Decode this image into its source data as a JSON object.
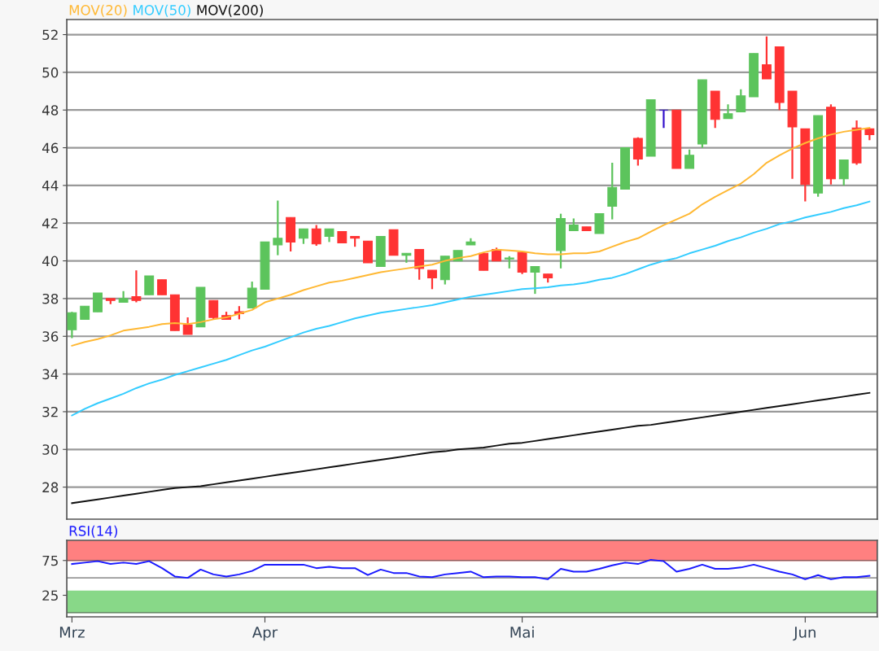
{
  "chart_data": [
    {
      "type": "candlestick",
      "categories": [
        null,
        null,
        null,
        null,
        null,
        null,
        null,
        null,
        null,
        null,
        null,
        null,
        null,
        null,
        null,
        null,
        null,
        null,
        null,
        null,
        null,
        null,
        null,
        null,
        null,
        null,
        null,
        null,
        null,
        null,
        null,
        null,
        null,
        null,
        null,
        null,
        null,
        null,
        null,
        null,
        null,
        null,
        null,
        null,
        null,
        null,
        null,
        null,
        null,
        null,
        null,
        null,
        null,
        null,
        null,
        null,
        null,
        null,
        null,
        null,
        null,
        null,
        null
      ],
      "ohlc": [
        [
          36.35,
          37.3,
          35.9,
          37.25
        ],
        [
          36.9,
          37.6,
          36.9,
          37.6
        ],
        [
          37.3,
          38.3,
          37.3,
          38.3
        ],
        [
          38.0,
          38.0,
          37.7,
          37.9
        ],
        [
          37.8,
          38.4,
          37.8,
          38.0
        ],
        [
          38.1,
          39.5,
          37.8,
          37.9
        ],
        [
          38.2,
          39.2,
          38.2,
          39.2
        ],
        [
          39.0,
          39.0,
          38.2,
          38.2
        ],
        [
          38.2,
          38.2,
          36.3,
          36.3
        ],
        [
          36.6,
          37.0,
          36.1,
          36.1
        ],
        [
          36.5,
          38.6,
          36.5,
          38.6
        ],
        [
          37.9,
          37.9,
          36.9,
          37.0
        ],
        [
          37.1,
          37.3,
          36.9,
          36.9
        ],
        [
          37.3,
          37.6,
          36.9,
          37.2
        ],
        [
          37.5,
          38.9,
          37.5,
          38.55
        ],
        [
          38.5,
          41.0,
          38.5,
          41.0
        ],
        [
          40.85,
          43.2,
          40.3,
          41.2
        ],
        [
          42.3,
          42.3,
          40.5,
          41.0
        ],
        [
          41.2,
          41.7,
          40.9,
          41.7
        ],
        [
          41.7,
          41.9,
          40.8,
          40.9
        ],
        [
          41.3,
          41.7,
          41.0,
          41.7
        ],
        [
          41.55,
          41.55,
          40.95,
          40.95
        ],
        [
          41.3,
          41.3,
          40.75,
          41.2
        ],
        [
          41.05,
          41.05,
          39.9,
          39.9
        ],
        [
          39.7,
          41.3,
          39.7,
          41.3
        ],
        [
          41.65,
          41.65,
          40.3,
          40.3
        ],
        [
          40.3,
          40.4,
          39.9,
          40.4
        ],
        [
          40.6,
          40.6,
          39.0,
          39.6
        ],
        [
          39.5,
          39.5,
          38.5,
          39.1
        ],
        [
          39.0,
          40.25,
          38.75,
          40.25
        ],
        [
          40.0,
          40.55,
          40.0,
          40.55
        ],
        [
          40.85,
          41.2,
          40.85,
          41.0
        ],
        [
          40.4,
          40.45,
          39.5,
          39.5
        ],
        [
          40.6,
          40.7,
          40.0,
          40.0
        ],
        [
          40.1,
          40.25,
          39.6,
          40.15
        ],
        [
          40.45,
          40.45,
          39.3,
          39.4
        ],
        [
          39.4,
          39.7,
          38.25,
          39.7
        ],
        [
          39.3,
          39.3,
          38.85,
          39.1
        ],
        [
          40.55,
          42.5,
          39.6,
          42.25
        ],
        [
          41.6,
          42.25,
          41.6,
          41.9
        ],
        [
          41.8,
          41.8,
          41.6,
          41.6
        ],
        [
          41.45,
          42.5,
          41.45,
          42.5
        ],
        [
          42.9,
          45.2,
          42.2,
          43.9
        ],
        [
          43.8,
          46.0,
          43.8,
          46.0
        ],
        [
          46.5,
          46.55,
          45.05,
          45.4
        ],
        [
          45.55,
          48.55,
          45.55,
          48.55
        ],
        [
          48.0,
          48.0,
          47.05,
          48.0
        ],
        [
          48.0,
          48.0,
          44.9,
          44.9
        ],
        [
          44.9,
          45.9,
          44.9,
          45.6
        ],
        [
          46.2,
          49.6,
          46.0,
          49.6
        ],
        [
          49.0,
          49.0,
          47.05,
          47.5
        ],
        [
          47.55,
          48.3,
          47.55,
          47.8
        ],
        [
          47.9,
          49.1,
          47.9,
          48.75
        ],
        [
          48.7,
          51.0,
          48.7,
          51.0
        ],
        [
          50.4,
          51.9,
          49.65,
          49.65
        ],
        [
          51.35,
          51.35,
          48.0,
          48.4
        ],
        [
          49.0,
          49.0,
          44.35,
          47.1
        ],
        [
          47.0,
          47.0,
          43.15,
          44.05
        ],
        [
          43.6,
          47.7,
          43.4,
          47.7
        ],
        [
          48.15,
          48.3,
          44.05,
          44.35
        ],
        [
          44.35,
          45.35,
          44.0,
          45.35
        ],
        [
          47.05,
          47.45,
          45.1,
          45.2
        ],
        [
          47.0,
          47.0,
          46.4,
          46.7
        ]
      ],
      "colors": [
        "#5cc45c",
        "#5cc45c",
        "#5cc45c",
        "#ff3333",
        "#5cc45c",
        "#ff3333",
        "#5cc45c",
        "#ff3333",
        "#ff3333",
        "#ff3333",
        "#5cc45c",
        "#ff3333",
        "#ff3333",
        "#ff3333",
        "#5cc45c",
        "#5cc45c",
        "#5cc45c",
        "#ff3333",
        "#5cc45c",
        "#ff3333",
        "#5cc45c",
        "#ff3333",
        "#ff3333",
        "#ff3333",
        "#5cc45c",
        "#ff3333",
        "#5cc45c",
        "#ff3333",
        "#ff3333",
        "#5cc45c",
        "#5cc45c",
        "#5cc45c",
        "#ff3333",
        "#ff3333",
        "#5cc45c",
        "#ff3333",
        "#5cc45c",
        "#ff3333",
        "#5cc45c",
        "#5cc45c",
        "#ff3333",
        "#5cc45c",
        "#5cc45c",
        "#5cc45c",
        "#ff3333",
        "#5cc45c",
        "#3311cc",
        "#ff3333",
        "#5cc45c",
        "#5cc45c",
        "#ff3333",
        "#5cc45c",
        "#5cc45c",
        "#5cc45c",
        "#ff3333",
        "#ff3333",
        "#ff3333",
        "#ff3333",
        "#5cc45c",
        "#ff3333",
        "#5cc45c",
        "#ff3333",
        "#ff3333"
      ],
      "series": [
        {
          "type": "line",
          "name": "MOV(20)",
          "color": "#ffb833",
          "values": [
            35.5,
            35.7,
            35.85,
            36.05,
            36.3,
            36.4,
            36.5,
            36.65,
            36.7,
            36.65,
            36.75,
            36.9,
            37.0,
            37.2,
            37.4,
            37.8,
            38.0,
            38.2,
            38.45,
            38.65,
            38.85,
            38.95,
            39.1,
            39.25,
            39.4,
            39.5,
            39.6,
            39.7,
            39.8,
            40.0,
            40.15,
            40.25,
            40.45,
            40.6,
            40.55,
            40.5,
            40.4,
            40.35,
            40.35,
            40.4,
            40.4,
            40.5,
            40.75,
            41.0,
            41.2,
            41.55,
            41.9,
            42.2,
            42.5,
            43.0,
            43.4,
            43.75,
            44.1,
            44.6,
            45.2,
            45.6,
            45.95,
            46.25,
            46.5,
            46.7,
            46.85,
            46.95,
            47.05
          ]
        },
        {
          "type": "line",
          "name": "MOV(50)",
          "color": "#33ccff",
          "values": [
            31.8,
            32.15,
            32.45,
            32.7,
            32.95,
            33.25,
            33.5,
            33.7,
            33.95,
            34.15,
            34.35,
            34.55,
            34.75,
            35.0,
            35.25,
            35.45,
            35.7,
            35.95,
            36.2,
            36.4,
            36.55,
            36.75,
            36.95,
            37.1,
            37.25,
            37.35,
            37.45,
            37.55,
            37.65,
            37.8,
            37.95,
            38.1,
            38.2,
            38.3,
            38.4,
            38.5,
            38.55,
            38.6,
            38.7,
            38.75,
            38.85,
            39.0,
            39.1,
            39.3,
            39.55,
            39.8,
            40.0,
            40.15,
            40.4,
            40.6,
            40.8,
            41.05,
            41.25,
            41.5,
            41.7,
            41.95,
            42.1,
            42.3,
            42.45,
            42.6,
            42.8,
            42.95,
            43.15
          ]
        },
        {
          "type": "line",
          "name": "MOV(200)",
          "color": "#111111",
          "values": [
            27.15,
            27.25,
            27.35,
            27.45,
            27.55,
            27.65,
            27.75,
            27.85,
            27.95,
            28.0,
            28.05,
            28.15,
            28.25,
            28.35,
            28.45,
            28.55,
            28.65,
            28.75,
            28.85,
            28.95,
            29.05,
            29.15,
            29.25,
            29.35,
            29.45,
            29.55,
            29.65,
            29.75,
            29.85,
            29.9,
            30.0,
            30.05,
            30.1,
            30.2,
            30.3,
            30.35,
            30.45,
            30.55,
            30.65,
            30.75,
            30.85,
            30.95,
            31.05,
            31.15,
            31.25,
            31.3,
            31.4,
            31.5,
            31.6,
            31.7,
            31.8,
            31.9,
            32.0,
            32.1,
            32.2,
            32.3,
            32.4,
            32.5,
            32.6,
            32.7,
            32.8,
            32.9,
            33.0
          ]
        }
      ],
      "ylim": [
        26.3,
        52.8
      ],
      "yticks": [
        28,
        30,
        32,
        34,
        36,
        38,
        40,
        42,
        44,
        46,
        48,
        50,
        52
      ],
      "grid": "y",
      "legend": "top left",
      "tick_labels": "y"
    },
    {
      "type": "line",
      "categories": [
        "Mrz",
        null,
        null,
        null,
        null,
        null,
        null,
        null,
        null,
        null,
        null,
        null,
        null,
        null,
        null,
        "Apr",
        null,
        null,
        null,
        null,
        null,
        null,
        null,
        null,
        null,
        null,
        null,
        null,
        null,
        null,
        null,
        null,
        null,
        null,
        null,
        "Mai",
        null,
        null,
        null,
        null,
        null,
        null,
        null,
        null,
        null,
        null,
        null,
        null,
        null,
        null,
        null,
        null,
        null,
        null,
        null,
        null,
        null,
        "Jun",
        null,
        null,
        null,
        null,
        null
      ],
      "series": [
        {
          "name": "RSI(14)",
          "color": "#1a1aff",
          "values": [
            70,
            72,
            74,
            70,
            72,
            70,
            74,
            64,
            52,
            50,
            62,
            55,
            52,
            55,
            60,
            69,
            69,
            69,
            69,
            64,
            66,
            64,
            64,
            54,
            62,
            57,
            57,
            52,
            51,
            55,
            57,
            59,
            51,
            52,
            52,
            51,
            51,
            48,
            63,
            59,
            59,
            63,
            68,
            72,
            70,
            76,
            74,
            59,
            63,
            69,
            63,
            63,
            65,
            69,
            64,
            59,
            55,
            48,
            54,
            48,
            51,
            51,
            53
          ]
        }
      ],
      "ylim": [
        -6,
        104
      ],
      "yticks": [
        25,
        75
      ],
      "bands": [
        {
          "axis": "y",
          "from": 75,
          "to": 104,
          "color": "#ff8080"
        },
        {
          "axis": "y",
          "from": 0,
          "to": 31,
          "color": "#88d888"
        }
      ],
      "ref_lines": [
        {
          "axis": "y",
          "value": 50,
          "color": "#999999"
        }
      ],
      "legend": "top left"
    }
  ]
}
